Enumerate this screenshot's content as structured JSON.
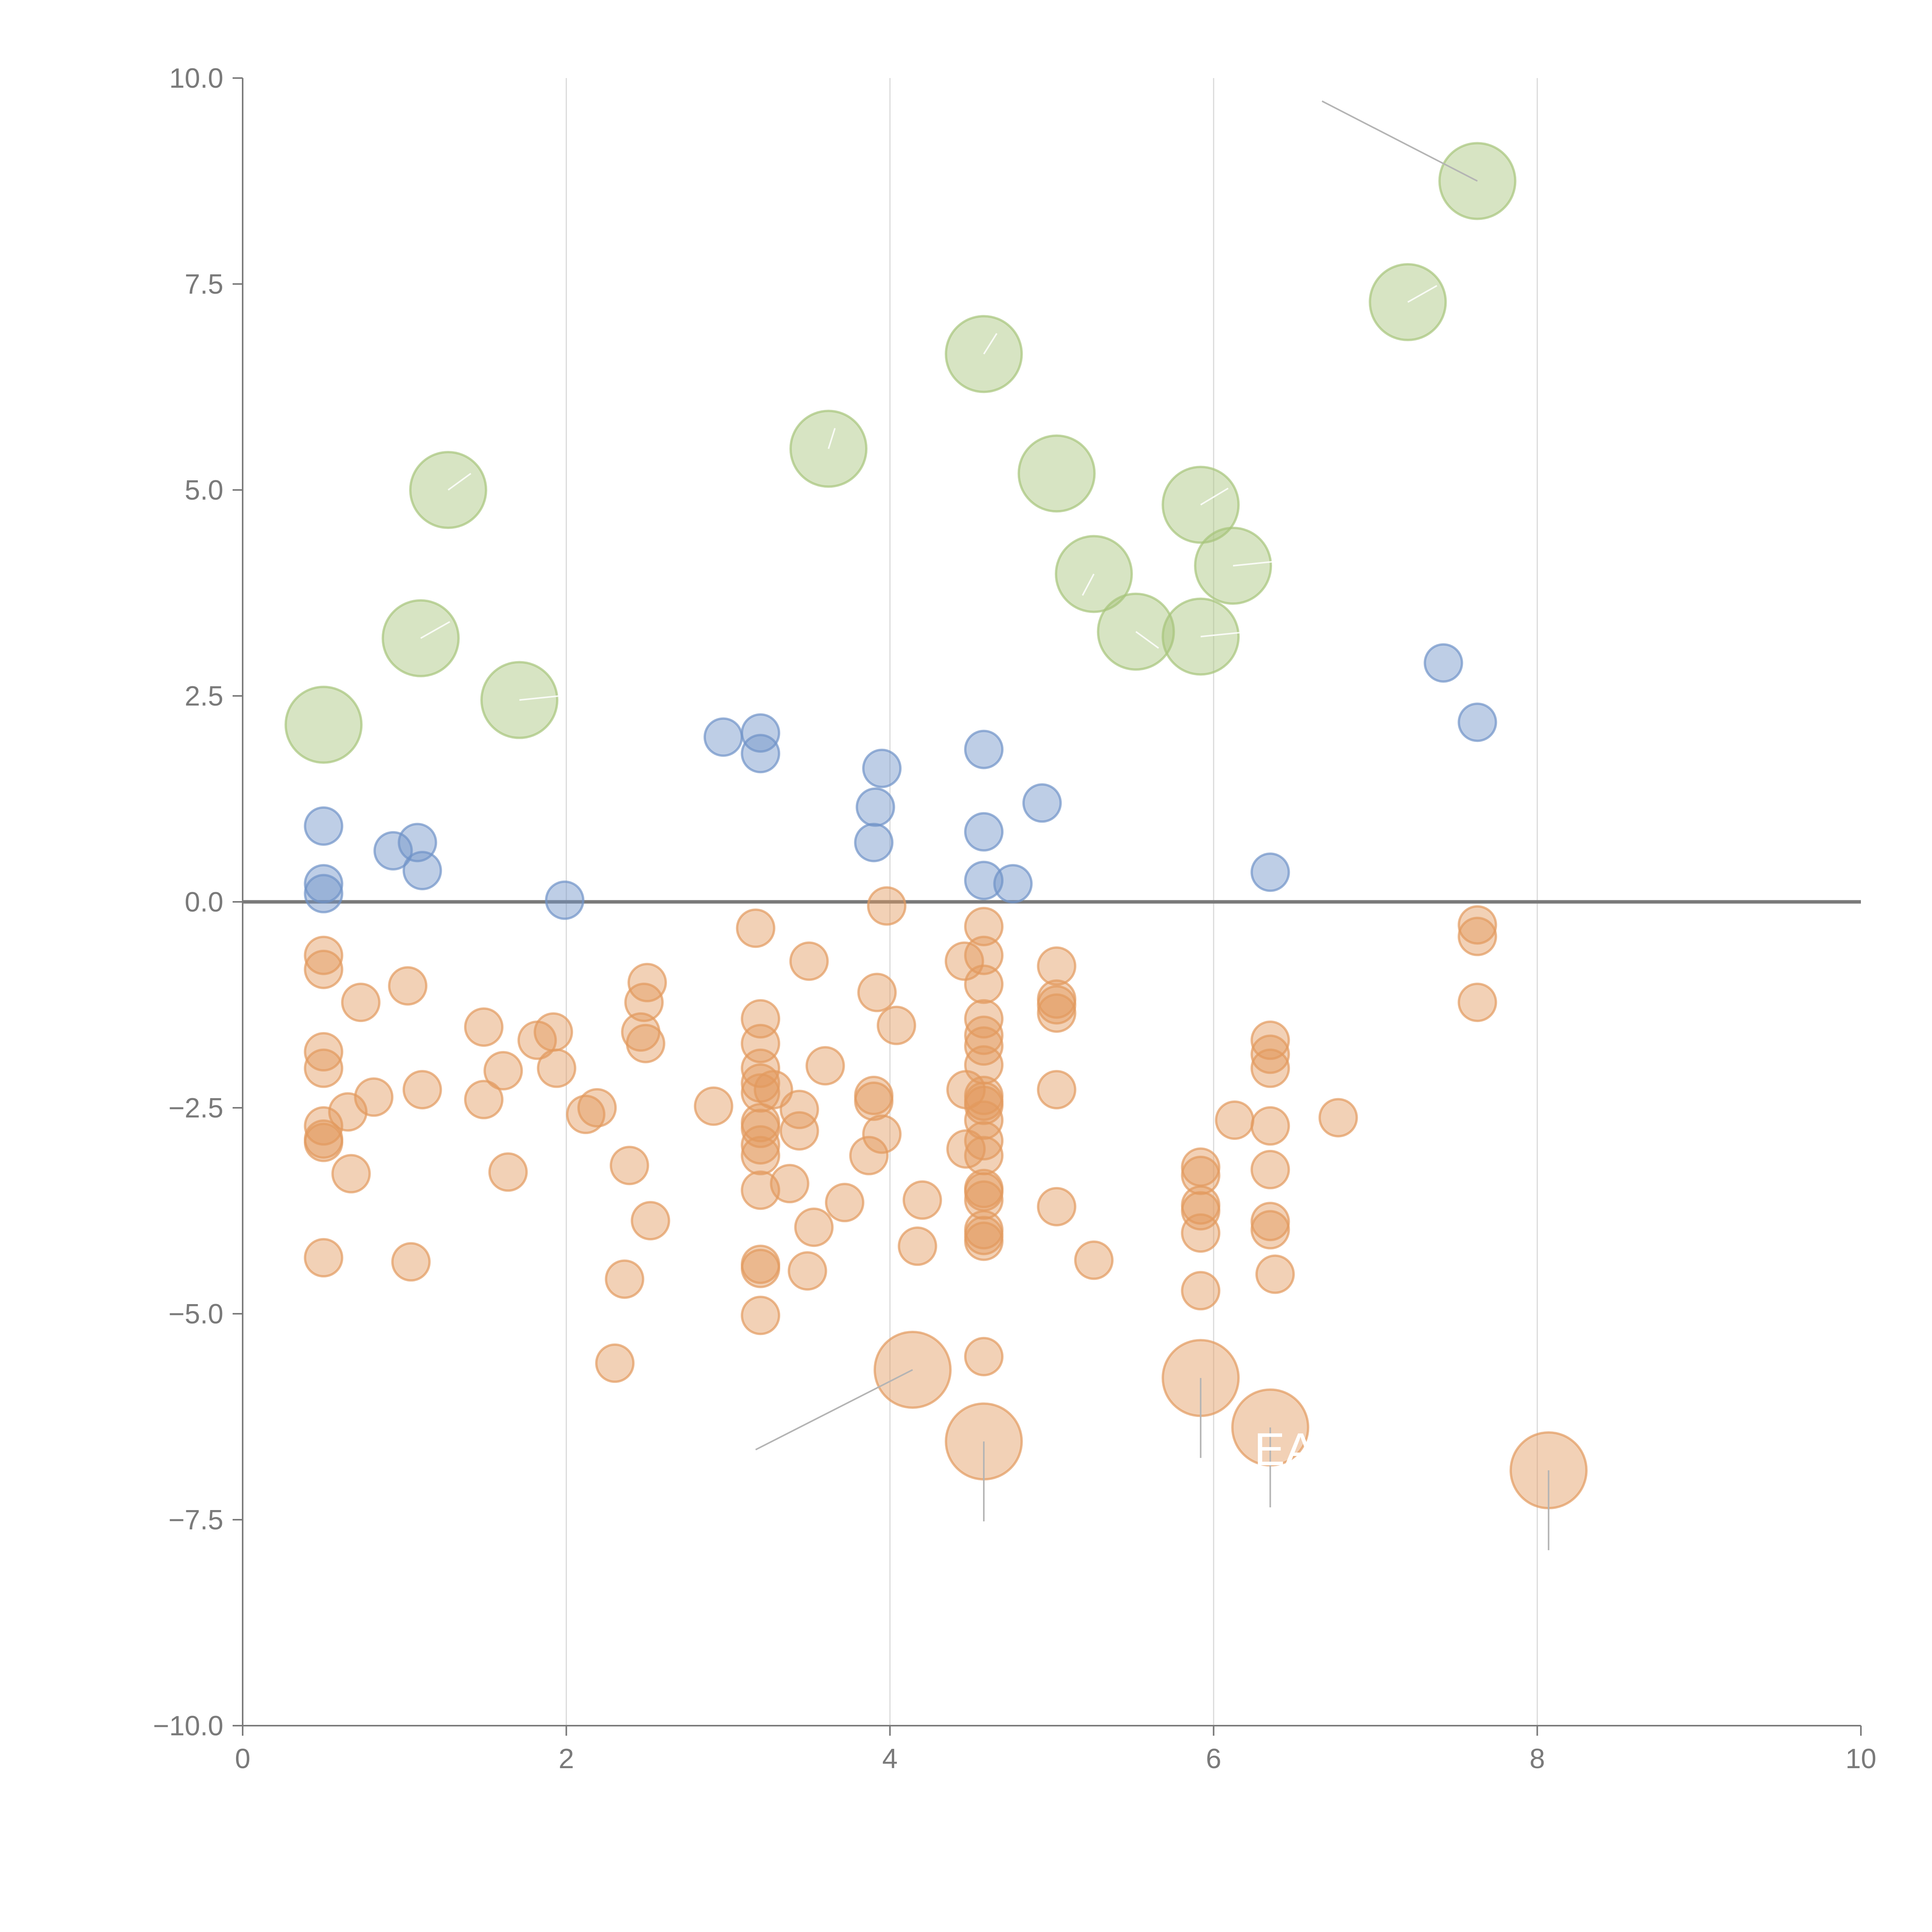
{
  "chart_data": {
    "type": "scatter",
    "title": "",
    "xlabel": "",
    "ylabel": "",
    "xlim": [
      0,
      10
    ],
    "ylim": [
      -10,
      10
    ],
    "xticks": [
      "0",
      "2",
      "4",
      "6",
      "8",
      "10"
    ],
    "yticks": [
      "10.0",
      "7.5",
      "5.0",
      "2.5",
      "0.0",
      "−2.5",
      "−5.0",
      "−7.5",
      "−10.0"
    ],
    "grid": "vertical lines at x = 2, 4, 6, 8",
    "reference_line_y": 0,
    "series": [
      {
        "color": "#a7c47a",
        "marker": "large circle",
        "points": [
          [
            0.5,
            2.15
          ],
          [
            1.1,
            3.2
          ],
          [
            1.27,
            5.0
          ],
          [
            1.71,
            2.45
          ],
          [
            3.62,
            5.5
          ],
          [
            4.58,
            6.65
          ],
          [
            5.03,
            5.2
          ],
          [
            5.26,
            3.98
          ],
          [
            5.52,
            3.28
          ],
          [
            5.92,
            4.82
          ],
          [
            5.92,
            3.22
          ],
          [
            6.12,
            4.08
          ],
          [
            7.2,
            7.28
          ],
          [
            7.63,
            8.75
          ]
        ]
      },
      {
        "color": "#6f93c8",
        "marker": "medium circle",
        "points": [
          [
            0.5,
            0.92
          ],
          [
            0.5,
            0.22
          ],
          [
            0.5,
            0.1
          ],
          [
            0.93,
            0.62
          ],
          [
            1.08,
            0.72
          ],
          [
            1.11,
            0.38
          ],
          [
            1.99,
            0.02
          ],
          [
            2.97,
            2.0
          ],
          [
            3.2,
            2.05
          ],
          [
            3.2,
            1.8
          ],
          [
            3.9,
            0.72
          ],
          [
            3.91,
            1.15
          ],
          [
            3.95,
            1.62
          ],
          [
            4.58,
            1.85
          ],
          [
            4.58,
            0.85
          ],
          [
            4.58,
            0.26
          ],
          [
            4.76,
            0.22
          ],
          [
            4.94,
            1.2
          ],
          [
            6.35,
            0.36
          ],
          [
            7.42,
            2.9
          ],
          [
            7.63,
            2.18
          ]
        ]
      },
      {
        "color": "#e29a5e",
        "marker": "medium circle",
        "points": [
          [
            0.5,
            -0.65
          ],
          [
            0.5,
            -0.82
          ],
          [
            0.5,
            -1.82
          ],
          [
            0.5,
            -2.02
          ],
          [
            0.5,
            -2.72
          ],
          [
            0.5,
            -2.88
          ],
          [
            0.5,
            -2.92
          ],
          [
            0.5,
            -4.32
          ],
          [
            0.65,
            -2.55
          ],
          [
            0.67,
            -3.3
          ],
          [
            0.73,
            -1.22
          ],
          [
            0.81,
            -2.37
          ],
          [
            1.02,
            -1.02
          ],
          [
            1.04,
            -4.37
          ],
          [
            1.11,
            -2.28
          ],
          [
            1.49,
            -2.4
          ],
          [
            1.49,
            -1.52
          ],
          [
            1.61,
            -2.05
          ],
          [
            1.64,
            -3.28
          ],
          [
            1.82,
            -1.68
          ],
          [
            1.92,
            -1.58
          ],
          [
            1.94,
            -2.02
          ],
          [
            2.12,
            -2.58
          ],
          [
            2.19,
            -2.5
          ],
          [
            2.3,
            -5.6
          ],
          [
            2.36,
            -4.58
          ],
          [
            2.39,
            -3.2
          ],
          [
            2.46,
            -1.58
          ],
          [
            2.48,
            -1.22
          ],
          [
            2.49,
            -1.72
          ],
          [
            2.5,
            -0.98
          ],
          [
            2.52,
            -3.87
          ],
          [
            2.91,
            -2.48
          ],
          [
            3.17,
            -0.32
          ],
          [
            3.2,
            -1.42
          ],
          [
            3.2,
            -1.72
          ],
          [
            3.2,
            -2.02
          ],
          [
            3.2,
            -2.2
          ],
          [
            3.2,
            -2.32
          ],
          [
            3.2,
            -2.68
          ],
          [
            3.2,
            -2.75
          ],
          [
            3.2,
            -2.95
          ],
          [
            3.2,
            -3.08
          ],
          [
            3.2,
            -3.5
          ],
          [
            3.2,
            -4.4
          ],
          [
            3.2,
            -4.45
          ],
          [
            3.2,
            -5.02
          ],
          [
            3.28,
            -2.28
          ],
          [
            3.38,
            -3.42
          ],
          [
            3.44,
            -2.52
          ],
          [
            3.44,
            -2.78
          ],
          [
            3.49,
            -4.48
          ],
          [
            3.5,
            -0.72
          ],
          [
            3.53,
            -3.95
          ],
          [
            3.6,
            -1.99
          ],
          [
            3.72,
            -3.65
          ],
          [
            3.87,
            -3.08
          ],
          [
            3.9,
            -2.35
          ],
          [
            3.9,
            -2.42
          ],
          [
            3.92,
            -1.1
          ],
          [
            3.95,
            -2.82
          ],
          [
            3.98,
            -0.05
          ],
          [
            4.04,
            -1.5
          ],
          [
            4.17,
            -4.18
          ],
          [
            4.2,
            -3.62
          ],
          [
            4.46,
            -0.72
          ],
          [
            4.47,
            -3.0
          ],
          [
            4.47,
            -2.28
          ],
          [
            4.58,
            -0.3
          ],
          [
            4.58,
            -0.65
          ],
          [
            4.58,
            -1.0
          ],
          [
            4.58,
            -1.42
          ],
          [
            4.58,
            -1.62
          ],
          [
            4.58,
            -1.75
          ],
          [
            4.58,
            -1.98
          ],
          [
            4.58,
            -2.35
          ],
          [
            4.58,
            -2.42
          ],
          [
            4.58,
            -2.47
          ],
          [
            4.58,
            -2.65
          ],
          [
            4.58,
            -2.9
          ],
          [
            4.58,
            -3.08
          ],
          [
            4.58,
            -3.48
          ],
          [
            4.58,
            -3.52
          ],
          [
            4.58,
            -3.62
          ],
          [
            4.58,
            -3.98
          ],
          [
            4.58,
            -4.05
          ],
          [
            4.58,
            -4.12
          ],
          [
            4.58,
            -5.52
          ],
          [
            5.03,
            -0.78
          ],
          [
            5.03,
            -1.18
          ],
          [
            5.03,
            -1.25
          ],
          [
            5.03,
            -1.35
          ],
          [
            5.03,
            -2.28
          ],
          [
            5.03,
            -3.7
          ],
          [
            5.26,
            -4.35
          ],
          [
            5.92,
            -3.22
          ],
          [
            5.92,
            -3.32
          ],
          [
            5.92,
            -3.68
          ],
          [
            5.92,
            -3.75
          ],
          [
            5.92,
            -4.02
          ],
          [
            5.92,
            -4.72
          ],
          [
            6.13,
            -2.65
          ],
          [
            6.35,
            -1.68
          ],
          [
            6.35,
            -1.85
          ],
          [
            6.35,
            -2.02
          ],
          [
            6.35,
            -2.72
          ],
          [
            6.35,
            -3.25
          ],
          [
            6.35,
            -3.88
          ],
          [
            6.35,
            -3.98
          ],
          [
            6.38,
            -4.52
          ],
          [
            6.77,
            -2.62
          ],
          [
            7.63,
            -0.28
          ],
          [
            7.63,
            -0.42
          ],
          [
            7.63,
            -1.22
          ]
        ]
      },
      {
        "color": "#e29a5e",
        "marker": "large circle",
        "points": [
          [
            4.14,
            -5.68
          ],
          [
            4.58,
            -6.55
          ],
          [
            5.92,
            -5.78
          ],
          [
            6.35,
            -6.38
          ],
          [
            8.07,
            -6.9
          ]
        ]
      }
    ],
    "annotations": [
      {
        "text": "",
        "x": 7.63,
        "y": 8.75,
        "label_x": 6.67,
        "label_y": 9.72
      },
      {
        "text": "",
        "x": 4.14,
        "y": -5.68,
        "label_x": 3.17,
        "label_y": -6.65
      },
      {
        "text": "",
        "x": 4.58,
        "y": -6.55,
        "label_x": 4.58,
        "label_y": -7.52
      },
      {
        "text": "",
        "x": 5.92,
        "y": -5.78,
        "label_x": 5.92,
        "label_y": -6.75
      },
      {
        "text": "",
        "x": 6.35,
        "y": -6.38,
        "label_x": 6.35,
        "label_y": -7.35
      },
      {
        "text": "",
        "x": 8.07,
        "y": -6.9,
        "label_x": 8.07,
        "label_y": -7.87
      },
      {
        "text": "",
        "x": 1.27,
        "y": 5.0,
        "label_x": 1.41,
        "label_y": 5.2
      },
      {
        "text": "",
        "x": 1.1,
        "y": 3.2,
        "label_x": 1.28,
        "label_y": 3.4
      },
      {
        "text": "",
        "x": 1.71,
        "y": 2.45,
        "label_x": 1.96,
        "label_y": 2.5
      },
      {
        "text": "",
        "x": 3.62,
        "y": 5.5,
        "label_x": 3.66,
        "label_y": 5.75
      },
      {
        "text": "",
        "x": 4.58,
        "y": 6.65,
        "label_x": 4.66,
        "label_y": 6.9
      },
      {
        "text": "",
        "x": 5.26,
        "y": 3.98,
        "label_x": 5.19,
        "label_y": 3.72
      },
      {
        "text": "",
        "x": 5.52,
        "y": 3.28,
        "label_x": 5.66,
        "label_y": 3.08
      },
      {
        "text": "",
        "x": 5.92,
        "y": 4.82,
        "label_x": 6.09,
        "label_y": 5.02
      },
      {
        "text": "",
        "x": 5.92,
        "y": 3.22,
        "label_x": 6.17,
        "label_y": 3.27
      },
      {
        "text": "",
        "x": 6.12,
        "y": 4.08,
        "label_x": 6.37,
        "label_y": 4.13
      },
      {
        "text": "",
        "x": 7.2,
        "y": 7.28,
        "label_x": 7.38,
        "label_y": 7.48
      }
    ],
    "visible_text_fragments": [
      {
        "text": "EA",
        "x": 6.25,
        "y": -6.65
      }
    ]
  }
}
